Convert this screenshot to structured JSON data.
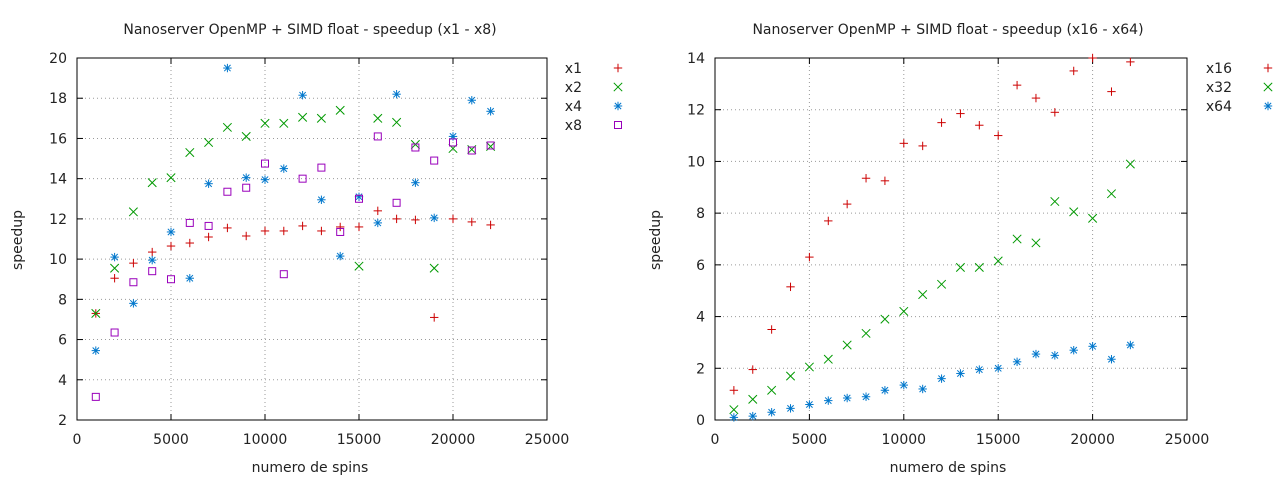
{
  "chart_data": [
    {
      "type": "scatter",
      "title": "Nanoserver OpenMP + SIMD float - speedup (x1 - x8)",
      "xlabel": "numero de spins",
      "ylabel": "speedup",
      "xlim": [
        0,
        25000
      ],
      "ylim": [
        2,
        20
      ],
      "xticks": [
        0,
        5000,
        10000,
        15000,
        20000,
        25000
      ],
      "yticks": [
        2,
        4,
        6,
        8,
        10,
        12,
        14,
        16,
        18,
        20
      ],
      "grid": true,
      "legend_position": "outside-right",
      "series": [
        {
          "name": "x1",
          "color": "#cc0000",
          "marker": "plus",
          "x": [
            1000,
            2000,
            3000,
            4000,
            5000,
            6000,
            7000,
            8000,
            9000,
            10000,
            11000,
            12000,
            13000,
            14000,
            15000,
            16000,
            17000,
            18000,
            19000,
            20000,
            21000,
            22000
          ],
          "y": [
            7.3,
            9.05,
            9.8,
            10.35,
            10.65,
            10.8,
            11.1,
            11.55,
            11.15,
            11.4,
            11.4,
            11.65,
            11.4,
            11.6,
            11.6,
            12.4,
            12.0,
            11.95,
            7.1,
            12.0,
            11.85,
            11.7
          ]
        },
        {
          "name": "x2",
          "color": "#009900",
          "marker": "cross",
          "x": [
            1000,
            2000,
            3000,
            4000,
            5000,
            6000,
            7000,
            8000,
            9000,
            10000,
            11000,
            12000,
            13000,
            14000,
            15000,
            16000,
            17000,
            18000,
            19000,
            20000,
            21000,
            22000
          ],
          "y": [
            7.3,
            9.55,
            12.35,
            13.8,
            14.05,
            15.3,
            15.8,
            16.55,
            16.1,
            16.75,
            16.75,
            17.05,
            17.0,
            17.4,
            9.65,
            17.0,
            16.8,
            15.7,
            9.55,
            15.5,
            15.45,
            15.6
          ]
        },
        {
          "name": "x4",
          "color": "#0077cc",
          "marker": "star",
          "x": [
            1000,
            2000,
            3000,
            4000,
            5000,
            6000,
            7000,
            8000,
            9000,
            10000,
            11000,
            12000,
            13000,
            14000,
            15000,
            16000,
            17000,
            18000,
            19000,
            20000,
            21000,
            22000
          ],
          "y": [
            5.45,
            10.1,
            7.8,
            9.95,
            11.35,
            9.05,
            13.75,
            19.5,
            14.05,
            13.95,
            14.5,
            18.15,
            12.95,
            10.15,
            13.1,
            11.8,
            18.2,
            13.8,
            12.05,
            16.1,
            17.9,
            17.35
          ]
        },
        {
          "name": "x8",
          "color": "#9900bb",
          "marker": "square",
          "x": [
            1000,
            2000,
            3000,
            4000,
            5000,
            6000,
            7000,
            8000,
            9000,
            10000,
            11000,
            12000,
            13000,
            14000,
            15000,
            16000,
            17000,
            18000,
            19000,
            20000,
            21000,
            22000
          ],
          "y": [
            3.15,
            6.35,
            8.85,
            9.4,
            9.0,
            11.8,
            11.65,
            13.35,
            13.55,
            14.75,
            9.25,
            14.0,
            14.55,
            11.35,
            13.0,
            16.1,
            12.8,
            15.55,
            14.9,
            15.8,
            15.4,
            15.65
          ]
        }
      ]
    },
    {
      "type": "scatter",
      "title": "Nanoserver OpenMP + SIMD float - speedup (x16 - x64)",
      "xlabel": "numero de spins",
      "ylabel": "speedup",
      "xlim": [
        0,
        25000
      ],
      "ylim": [
        0,
        14
      ],
      "xticks": [
        0,
        5000,
        10000,
        15000,
        20000,
        25000
      ],
      "yticks": [
        0,
        2,
        4,
        6,
        8,
        10,
        12,
        14
      ],
      "grid": true,
      "legend_position": "outside-right",
      "series": [
        {
          "name": "x16",
          "color": "#cc0000",
          "marker": "plus",
          "x": [
            1000,
            2000,
            3000,
            4000,
            5000,
            6000,
            7000,
            8000,
            9000,
            10000,
            11000,
            12000,
            13000,
            14000,
            15000,
            16000,
            17000,
            18000,
            19000,
            20000,
            21000,
            22000
          ],
          "y": [
            1.15,
            1.95,
            3.5,
            5.15,
            6.3,
            7.7,
            8.35,
            9.35,
            9.25,
            10.7,
            10.6,
            11.5,
            11.85,
            11.4,
            11.0,
            12.95,
            12.45,
            11.9,
            13.5,
            14.0,
            12.7,
            13.85
          ]
        },
        {
          "name": "x32",
          "color": "#009900",
          "marker": "cross",
          "x": [
            1000,
            2000,
            3000,
            4000,
            5000,
            6000,
            7000,
            8000,
            9000,
            10000,
            11000,
            12000,
            13000,
            14000,
            15000,
            16000,
            17000,
            18000,
            19000,
            20000,
            21000,
            22000
          ],
          "y": [
            0.4,
            0.8,
            1.15,
            1.7,
            2.05,
            2.35,
            2.9,
            3.35,
            3.9,
            4.2,
            4.85,
            5.25,
            5.9,
            5.9,
            6.15,
            7.0,
            6.85,
            8.45,
            8.05,
            7.8,
            8.75,
            9.9
          ]
        },
        {
          "name": "x64",
          "color": "#0077cc",
          "marker": "star",
          "x": [
            1000,
            2000,
            3000,
            4000,
            5000,
            6000,
            7000,
            8000,
            9000,
            10000,
            11000,
            12000,
            13000,
            14000,
            15000,
            16000,
            17000,
            18000,
            19000,
            20000,
            21000,
            22000
          ],
          "y": [
            0.1,
            0.15,
            0.3,
            0.45,
            0.6,
            0.75,
            0.85,
            0.9,
            1.15,
            1.35,
            1.2,
            1.6,
            1.8,
            1.95,
            2.0,
            2.25,
            2.55,
            2.5,
            2.7,
            2.85,
            2.35,
            2.9
          ]
        }
      ]
    }
  ]
}
